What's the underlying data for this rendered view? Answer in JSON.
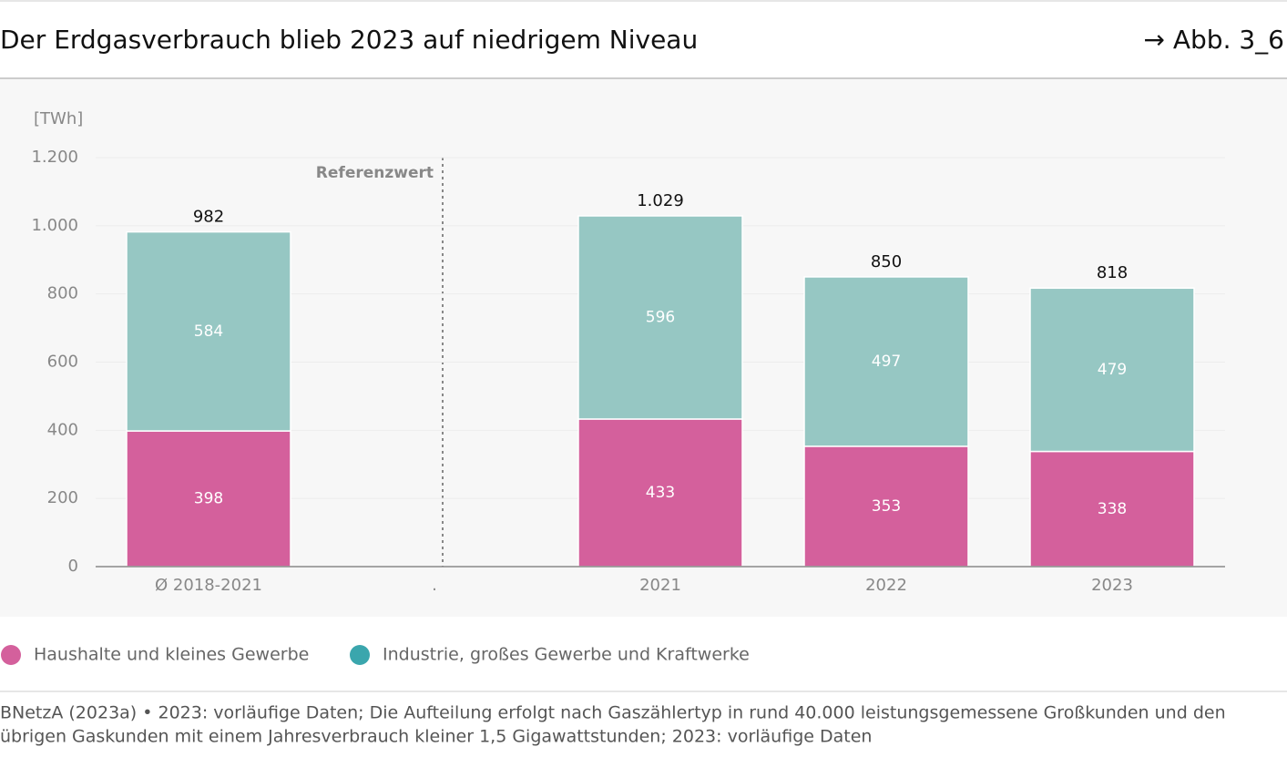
{
  "header": {
    "title": "Der Erdgasverbrauch blieb 2023 auf niedrigem Niveau",
    "reference": "→ Abb. 3_6"
  },
  "chart_data": {
    "type": "stacked_bar",
    "y_axis_label": "[TWh]",
    "annotation": "Referenzwert",
    "categories": [
      "Ø 2018-2021",
      ".",
      "2021",
      "2022",
      "2023"
    ],
    "series": [
      {
        "name": "Haushalte und kleines Gewerbe",
        "color": "#d4609c",
        "legend_color": "#d4609c",
        "values": [
          398,
          null,
          433,
          353,
          338
        ]
      },
      {
        "name": "Industrie, großes Gewerbe und Kraftwerke",
        "color": "#96c7c3",
        "legend_color": "#3aa6ad",
        "values": [
          584,
          null,
          596,
          497,
          479
        ]
      }
    ],
    "totals": [
      982,
      null,
      1029,
      850,
      818
    ],
    "totals_value_labels": [
      "982",
      null,
      "1.029",
      "850",
      "818"
    ],
    "ylim": [
      0,
      1200
    ],
    "yticks": [
      0,
      200,
      400,
      600,
      800,
      {
        "value": 1000,
        "label": "1.000"
      },
      {
        "value": 1200,
        "label": "1.200"
      }
    ],
    "grid": true
  },
  "footer": {
    "source_lines": [
      "BNetzA (2023a) • 2023: vorläufige Daten; Die Aufteilung erfolgt nach Gaszählertyp in rund 40.000 leistungsgemessene Großkunden und den",
      "übrigen Gaskunden mit einem Jahresverbrauch kleiner 1,5 Gigawattstunden; 2023: vorläufige Daten"
    ]
  }
}
